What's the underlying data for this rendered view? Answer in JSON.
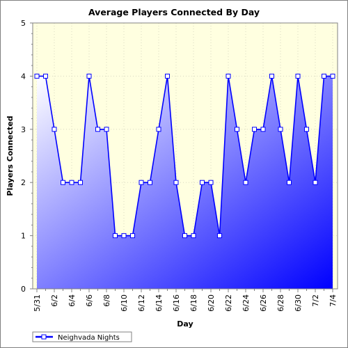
{
  "chart_data": {
    "type": "area",
    "title": "Average Players Connected By Day",
    "xlabel": "Day",
    "ylabel": "Players Connected",
    "ylim": [
      0,
      5
    ],
    "y_ticks": [
      "0",
      "1",
      "2",
      "3",
      "4",
      "5"
    ],
    "x": [
      "5/31",
      "6/1",
      "6/2",
      "6/3",
      "6/4",
      "6/5",
      "6/6",
      "6/7",
      "6/8",
      "6/9",
      "6/10",
      "6/11",
      "6/12",
      "6/13",
      "6/14",
      "6/15",
      "6/16",
      "6/17",
      "6/18",
      "6/19",
      "6/20",
      "6/21",
      "6/22",
      "6/23",
      "6/24",
      "6/25",
      "6/26",
      "6/27",
      "6/28",
      "6/29",
      "6/30",
      "7/1",
      "7/2",
      "7/3",
      "7/4"
    ],
    "x_tick_labels": [
      "5/31",
      "6/2",
      "6/4",
      "6/6",
      "6/8",
      "6/10",
      "6/12",
      "6/14",
      "6/16",
      "6/18",
      "6/20",
      "6/22",
      "6/24",
      "6/26",
      "6/28",
      "6/30",
      "7/2",
      "7/4"
    ],
    "series": [
      {
        "name": "Neighvada Nights",
        "values": [
          4,
          4,
          3,
          2,
          2,
          2,
          4,
          3,
          3,
          1,
          1,
          1,
          2,
          2,
          3,
          4,
          2,
          1,
          1,
          2,
          2,
          1,
          4,
          3,
          2,
          3,
          3,
          4,
          3,
          2,
          4,
          3,
          2,
          4,
          4
        ]
      }
    ],
    "grid": true,
    "legend": "bottom-left",
    "colors": {
      "plot_bg_top": "#ffffe0",
      "area_light": "#ffffff",
      "area_dark": "#0000ff",
      "line": "#0000ff",
      "marker_fill": "#ffffff"
    }
  }
}
